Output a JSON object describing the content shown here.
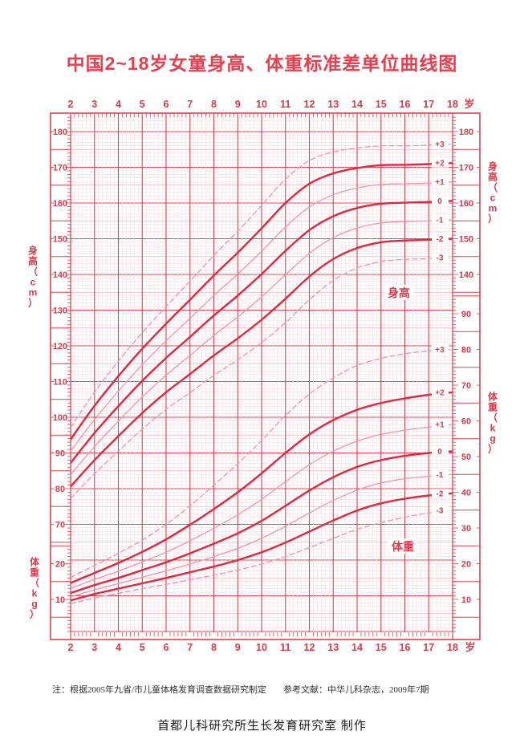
{
  "title": "中国2~18岁女童身高、体重标准差单位曲线图",
  "colors": {
    "red": "#e2424f",
    "curve_bold": "#df2740",
    "curve_thin": "#f295ab",
    "curve_dashed": "#ec93b1",
    "grid_fine": "#f8d7dc",
    "grid_medium": "#f2b3bd",
    "label_red": "#d93a4a",
    "note_black": "#333333"
  },
  "axes": {
    "age_ticks": [
      2,
      3,
      4,
      5,
      6,
      7,
      8,
      9,
      10,
      11,
      12,
      13,
      14,
      15,
      16,
      17,
      18
    ],
    "age_unit": "岁",
    "left_height_ticks": [
      180,
      170,
      160,
      150,
      140,
      130,
      120,
      110,
      100,
      90,
      80,
      70
    ],
    "left_weight_ticks": [
      20,
      10
    ],
    "right_height_ticks": [
      180,
      170,
      160,
      150,
      140
    ],
    "right_weight_ticks": [
      90,
      80,
      70,
      60,
      50,
      40,
      30,
      20,
      10
    ],
    "height_axis_title": "身高（cm）",
    "weight_axis_title": "体重（kg）"
  },
  "inplot_labels": {
    "height": "身高",
    "weight": "体重"
  },
  "sd_labels": [
    "+3",
    "+2",
    "+1",
    "0",
    "-1",
    "-2",
    "-3"
  ],
  "notes": {
    "left": "注：根据2005年九省/市儿童体格发育调查数据研究制定",
    "right": "参考文献：中华儿科杂志，2009年7期"
  },
  "credit": "首都儿科研究所生长发育研究室  制作",
  "chart_data": {
    "type": "line",
    "x": [
      2,
      3,
      4,
      5,
      6,
      7,
      8,
      9,
      10,
      11,
      12,
      13,
      14,
      15,
      16,
      17,
      18
    ],
    "x_unit": "岁",
    "legend_position": "none",
    "grid": true,
    "groups": [
      {
        "name": "身高",
        "unit": "cm",
        "axis_range": [
          65,
          185
        ],
        "series": [
          {
            "sd": "+3",
            "style": "dashed",
            "values": [
              97.1,
              107.0,
              115.7,
              123.7,
              131.0,
              138.1,
              145.3,
              152.1,
              159.3,
              166.7,
              171.9,
              174.3,
              175.4,
              176.0,
              176.0,
              176.2,
              176.5
            ]
          },
          {
            "sd": "+2",
            "style": "bold",
            "values": [
              93.8,
              103.2,
              111.5,
              119.2,
              126.2,
              132.9,
              139.7,
              146.1,
              152.9,
              160.0,
              165.4,
              168.3,
              169.8,
              170.6,
              170.7,
              170.9,
              171.2
            ]
          },
          {
            "sd": "+1",
            "style": "thin",
            "values": [
              90.5,
              99.4,
              107.3,
              114.7,
              121.4,
              127.7,
              134.1,
              140.1,
              146.5,
              153.3,
              158.9,
              162.3,
              164.2,
              165.2,
              165.4,
              165.6,
              165.9
            ]
          },
          {
            "sd": "0",
            "style": "bold",
            "values": [
              87.2,
              95.6,
              103.1,
              110.2,
              116.6,
              122.5,
              128.5,
              134.1,
              140.1,
              146.6,
              152.4,
              156.3,
              158.6,
              159.8,
              160.1,
              160.3,
              160.6
            ]
          },
          {
            "sd": "-1",
            "style": "thin",
            "values": [
              83.9,
              91.8,
              98.9,
              105.7,
              111.8,
              117.3,
              122.9,
              128.1,
              133.7,
              139.9,
              145.9,
              150.3,
              153.0,
              154.4,
              154.8,
              155.0,
              155.3
            ]
          },
          {
            "sd": "-2",
            "style": "bold",
            "values": [
              80.6,
              88.0,
              94.7,
              101.2,
              107.0,
              112.1,
              117.3,
              122.1,
              127.3,
              133.2,
              139.4,
              144.3,
              147.4,
              149.0,
              149.5,
              149.7,
              150.0
            ]
          },
          {
            "sd": "-3",
            "style": "dashed",
            "values": [
              77.3,
              84.2,
              90.5,
              96.7,
              102.2,
              106.9,
              111.7,
              116.1,
              120.9,
              126.5,
              132.9,
              138.3,
              141.8,
              143.6,
              144.2,
              144.4,
              144.7
            ]
          }
        ]
      },
      {
        "name": "体重",
        "unit": "kg",
        "axis_range": [
          5,
          90
        ],
        "series": [
          {
            "sd": "+3",
            "style": "dashed",
            "values": [
              16.2,
              19.5,
              22.9,
              26.6,
              31.0,
              36.2,
              42.0,
              48.0,
              54.5,
              61.5,
              67.5,
              72.0,
              75.5,
              77.5,
              78.8,
              79.6,
              80.0
            ]
          },
          {
            "sd": "+2",
            "style": "bold",
            "values": [
              14.6,
              17.4,
              20.2,
              23.3,
              26.8,
              30.9,
              35.3,
              40.0,
              45.3,
              51.0,
              56.2,
              60.2,
              63.1,
              65.0,
              66.3,
              67.3,
              68.0
            ]
          },
          {
            "sd": "+1",
            "style": "thin",
            "values": [
              13.1,
              15.6,
              17.9,
              20.5,
              23.2,
              26.4,
              29.9,
              33.7,
              38.0,
              43.0,
              47.7,
              51.5,
              54.3,
              56.2,
              57.4,
              58.3,
              59.0
            ]
          },
          {
            "sd": "0",
            "style": "bold",
            "values": [
              11.8,
              14.0,
              16.0,
              18.2,
              20.4,
              22.9,
              25.6,
              28.5,
              32.0,
              36.2,
              40.5,
              44.2,
              47.1,
              49.0,
              50.2,
              51.0,
              51.5
            ]
          },
          {
            "sd": "-1",
            "style": "thin",
            "values": [
              10.7,
              12.7,
              14.4,
              16.2,
              18.0,
              19.9,
              22.0,
              24.3,
              27.1,
              30.5,
              34.2,
              37.7,
              40.6,
              42.6,
              43.8,
              44.5,
              45.0
            ]
          },
          {
            "sd": "-2",
            "style": "bold",
            "values": [
              9.7,
              11.5,
              13.0,
              14.5,
              16.0,
              17.6,
              19.2,
              21.0,
              23.2,
              25.9,
              29.0,
              32.1,
              34.9,
              36.9,
              38.2,
              39.1,
              39.7
            ]
          },
          {
            "sd": "-3",
            "style": "dashed",
            "values": [
              8.8,
              10.4,
              11.7,
              13.0,
              14.2,
              15.5,
              16.8,
              18.2,
              19.9,
              22.0,
              24.5,
              27.1,
              29.6,
              31.5,
              33.0,
              34.2,
              35.0
            ]
          }
        ]
      }
    ]
  }
}
